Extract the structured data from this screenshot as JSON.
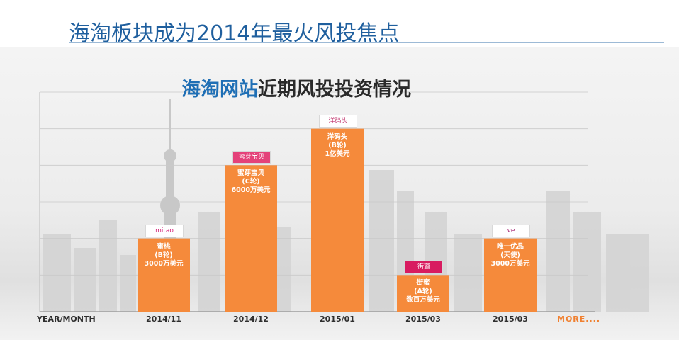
{
  "slide": {
    "title": "海淘板块成为2014年最火风投焦点"
  },
  "colors": {
    "bar": "#f58a3b",
    "title_blue": "#1f5f9e",
    "highlight_blue": "#1f6fb5",
    "more": "#f08030"
  },
  "chart_data": {
    "type": "bar",
    "title_highlight": "海淘网站",
    "title_rest": "近期风投投资情况",
    "xlabel": "YEAR/MONTH",
    "more_label": "MORE....",
    "categories": [
      "2014/11",
      "2014/12",
      "2015/01",
      "2015/03",
      "2015/03"
    ],
    "bars": [
      {
        "company": "蜜桃",
        "round": "(B轮)",
        "amount": "3000万美元",
        "relative_height": 3,
        "logo": "mitao"
      },
      {
        "company": "蜜芽宝贝",
        "round": "(C轮)",
        "amount": "6000万美元",
        "relative_height": 6,
        "logo": "蜜芽宝贝"
      },
      {
        "company": "洋码头",
        "round": "(B轮)",
        "amount": "1亿美元",
        "relative_height": 7.5,
        "logo": "洋码头"
      },
      {
        "company": "街蜜",
        "round": "(A轮)",
        "amount": "数百万美元",
        "relative_height": 1.5,
        "logo": "街蜜"
      },
      {
        "company": "唯一优品",
        "round": "(天使)",
        "amount": "3000万美元",
        "relative_height": 3,
        "logo": "ve"
      }
    ],
    "ylim": [
      0,
      9
    ],
    "grid": true
  }
}
